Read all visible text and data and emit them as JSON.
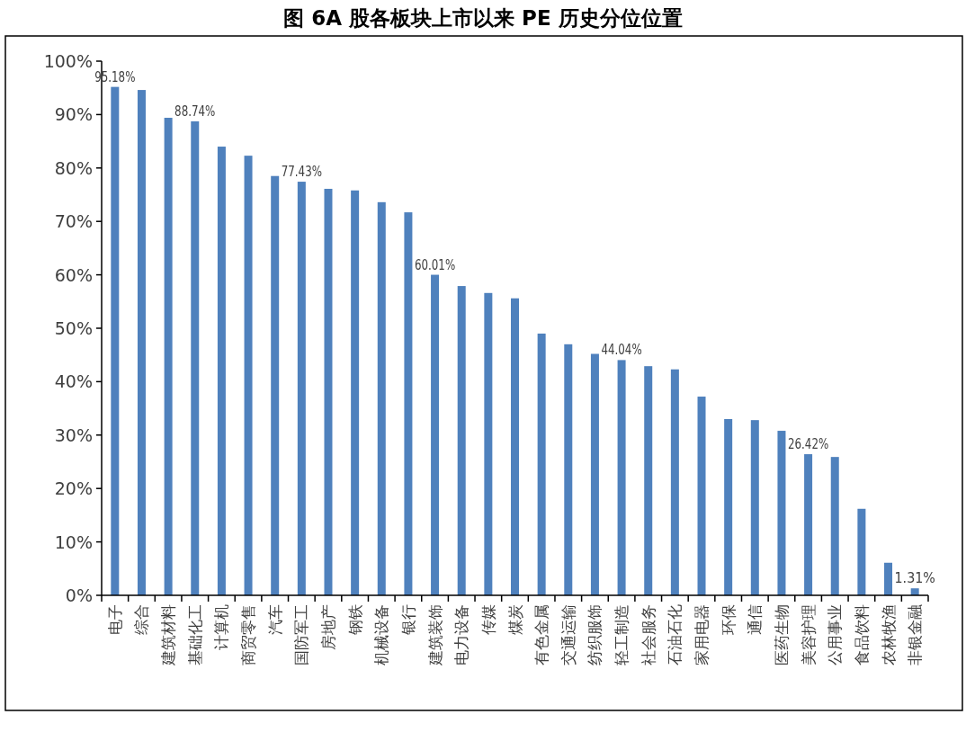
{
  "chart_data": {
    "type": "bar",
    "title": "图 6A 股各板块上市以来 PE 历史分位位置",
    "categories": [
      "电子",
      "综合",
      "建筑材料",
      "基础化工",
      "计算机",
      "商贸零售",
      "汽车",
      "国防军工",
      "房地产",
      "钢铁",
      "机械设备",
      "银行",
      "建筑装饰",
      "电力设备",
      "传媒",
      "煤炭",
      "有色金属",
      "交通运输",
      "纺织服饰",
      "轻工制造",
      "社会服务",
      "石油石化",
      "家用电器",
      "环保",
      "通信",
      "医药生物",
      "美容护理",
      "公用事业",
      "食品饮料",
      "农林牧渔",
      "非银金融"
    ],
    "values": [
      95.18,
      94.6,
      89.4,
      88.74,
      84.0,
      82.3,
      78.5,
      77.43,
      76.1,
      75.8,
      73.6,
      71.7,
      60.01,
      57.9,
      56.6,
      55.6,
      49.0,
      47.0,
      45.2,
      44.04,
      42.9,
      42.3,
      37.2,
      33.0,
      32.8,
      30.8,
      26.42,
      25.9,
      16.2,
      6.1,
      1.31
    ],
    "value_labels": [
      "95.18%",
      null,
      null,
      "88.74%",
      null,
      null,
      null,
      "77.43%",
      null,
      null,
      null,
      null,
      "60.01%",
      null,
      null,
      null,
      null,
      null,
      null,
      "44.04%",
      null,
      null,
      null,
      null,
      null,
      null,
      "26.42%",
      null,
      null,
      null,
      "1.31%"
    ],
    "color": "#4f81bd",
    "ylim": [
      0,
      100
    ],
    "yticks": [
      {
        "value": 0,
        "label": "0%"
      },
      {
        "value": 10,
        "label": "10%"
      },
      {
        "value": 20,
        "label": "20%"
      },
      {
        "value": 30,
        "label": "30%"
      },
      {
        "value": 40,
        "label": "40%"
      },
      {
        "value": 50,
        "label": "50%"
      },
      {
        "value": 60,
        "label": "60%"
      },
      {
        "value": 70,
        "label": "70%"
      },
      {
        "value": 80,
        "label": "80%"
      },
      {
        "value": 90,
        "label": "90%"
      },
      {
        "value": 100,
        "label": "100%"
      }
    ],
    "grid": false
  }
}
